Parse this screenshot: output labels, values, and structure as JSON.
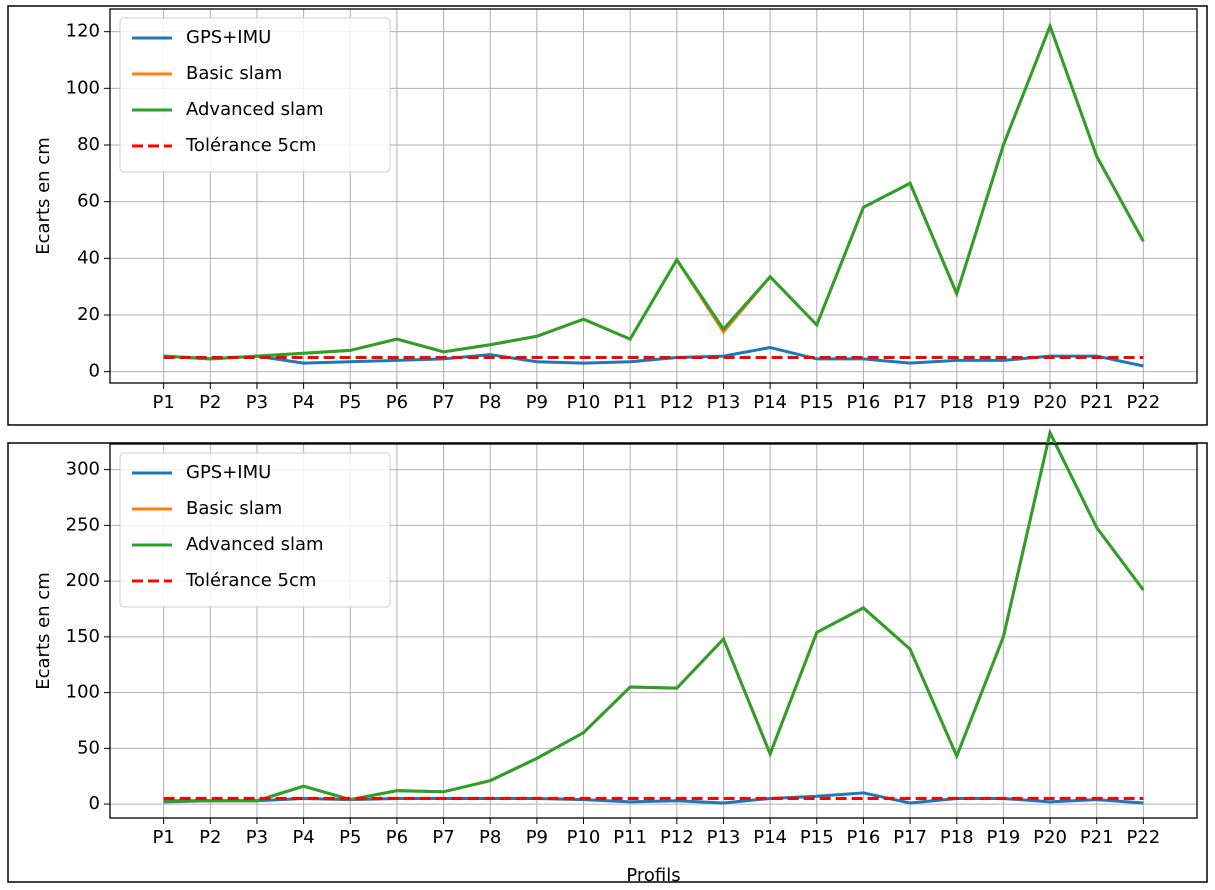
{
  "chart_data": [
    {
      "type": "line",
      "ylabel": "Ecarts en cm",
      "categories": [
        "P1",
        "P2",
        "P3",
        "P4",
        "P5",
        "P6",
        "P7",
        "P8",
        "P9",
        "P10",
        "P11",
        "P12",
        "P13",
        "P14",
        "P15",
        "P16",
        "P17",
        "P18",
        "P19",
        "P20",
        "P21",
        "P22"
      ],
      "ylim": [
        -4,
        128
      ],
      "yticks": [
        0,
        20,
        40,
        60,
        80,
        100,
        120
      ],
      "grid": true,
      "legend": "upper left",
      "series": [
        {
          "name": "GPS+IMU",
          "color": "#1f77b4",
          "values": [
            5.5,
            4.5,
            5.5,
            3,
            3.5,
            4,
            4.5,
            6,
            3.5,
            3,
            3.5,
            5,
            5.5,
            8.5,
            4.5,
            4.5,
            3,
            4,
            4,
            5.5,
            5.5,
            2
          ]
        },
        {
          "name": "Basic slam",
          "color": "#ff7f0e",
          "values": [
            5.5,
            4.5,
            5.5,
            6.5,
            7.5,
            11.5,
            7,
            9.5,
            12.5,
            18.5,
            11.5,
            39.5,
            14,
            33.5,
            16.5,
            58,
            66.5,
            27.5,
            80,
            122,
            76,
            46
          ]
        },
        {
          "name": "Advanced slam",
          "color": "#2ca02c",
          "values": [
            5.5,
            4.5,
            5.5,
            6.5,
            7.5,
            11.5,
            7,
            9.5,
            12.5,
            18.5,
            11.5,
            39.5,
            15,
            33.5,
            16.5,
            58,
            66.5,
            27.5,
            80,
            122,
            76,
            46
          ]
        },
        {
          "name": "Tolérance 5cm",
          "color": "#ff0000",
          "linestyle": "dashed",
          "values": [
            5,
            5,
            5,
            5,
            5,
            5,
            5,
            5,
            5,
            5,
            5,
            5,
            5,
            5,
            5,
            5,
            5,
            5,
            5,
            5,
            5,
            5
          ]
        }
      ]
    },
    {
      "type": "line",
      "ylabel": "Ecarts en cm",
      "xlabel": "Profils",
      "categories": [
        "P1",
        "P2",
        "P3",
        "P4",
        "P5",
        "P6",
        "P7",
        "P8",
        "P9",
        "P10",
        "P11",
        "P12",
        "P13",
        "P14",
        "P15",
        "P16",
        "P17",
        "P18",
        "P19",
        "P20",
        "P21",
        "P22"
      ],
      "ylim": [
        -12.5,
        323
      ],
      "yticks": [
        0,
        50,
        100,
        150,
        200,
        250,
        300
      ],
      "grid": true,
      "legend": "upper left",
      "series": [
        {
          "name": "GPS+IMU",
          "color": "#1f77b4",
          "values": [
            2,
            3,
            3,
            5,
            4,
            5,
            5,
            5,
            5,
            4,
            2,
            3,
            1,
            5,
            7,
            10,
            1,
            5,
            5,
            2,
            4,
            1
          ]
        },
        {
          "name": "Basic slam",
          "color": "#ff7f0e",
          "values": [
            3,
            3,
            3,
            16,
            4,
            12,
            11,
            21,
            41,
            64,
            105,
            104,
            148,
            45,
            154,
            176,
            139,
            43,
            150,
            333,
            248,
            192
          ]
        },
        {
          "name": "Advanced slam",
          "color": "#2ca02c",
          "values": [
            3,
            3,
            3,
            16,
            4,
            12,
            11,
            21,
            41,
            64,
            105,
            104,
            148,
            45,
            154,
            176,
            139,
            43,
            150,
            333,
            248,
            192
          ]
        },
        {
          "name": "Tolérance 5cm",
          "color": "#ff0000",
          "linestyle": "dashed",
          "values": [
            5,
            5,
            5,
            5,
            5,
            5,
            5,
            5,
            5,
            5,
            5,
            5,
            5,
            5,
            5,
            5,
            5,
            5,
            5,
            5,
            5,
            5
          ]
        }
      ]
    }
  ]
}
